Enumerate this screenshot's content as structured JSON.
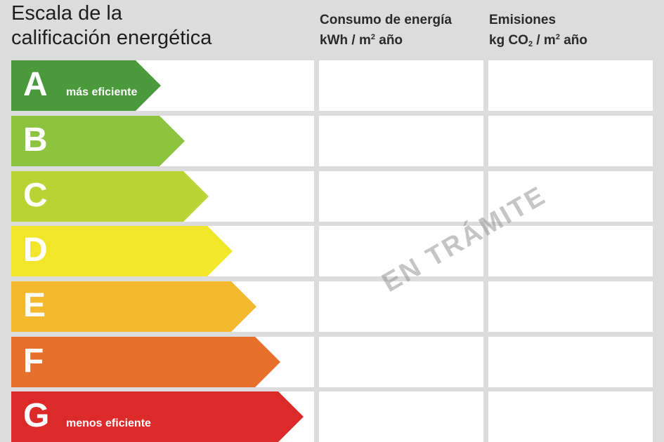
{
  "title": {
    "line1": "Escala de la",
    "line2": "calificación energética"
  },
  "columns": {
    "consumption": {
      "line1": "Consumo de energía",
      "unit_prefix": "kWh / m",
      "unit_sup": "2",
      "unit_suffix": " año"
    },
    "emissions": {
      "line1": "Emisiones",
      "unit_prefix": "kg CO",
      "unit_sub": "2",
      "unit_mid": " / m",
      "unit_sup": "2",
      "unit_suffix": " año"
    }
  },
  "ratings": [
    {
      "letter": "A",
      "label": "más eficiente",
      "color": "#4a9a3c"
    },
    {
      "letter": "B",
      "label": "",
      "color": "#8cc43f"
    },
    {
      "letter": "C",
      "label": "",
      "color": "#b9d432"
    },
    {
      "letter": "D",
      "label": "",
      "color": "#f2e62b"
    },
    {
      "letter": "E",
      "label": "",
      "color": "#f4b92d"
    },
    {
      "letter": "F",
      "label": "",
      "color": "#e6702c"
    },
    {
      "letter": "G",
      "label": "menos eficiente",
      "color": "#dc2a2a"
    }
  ],
  "watermark": "EN TRÁMITE"
}
